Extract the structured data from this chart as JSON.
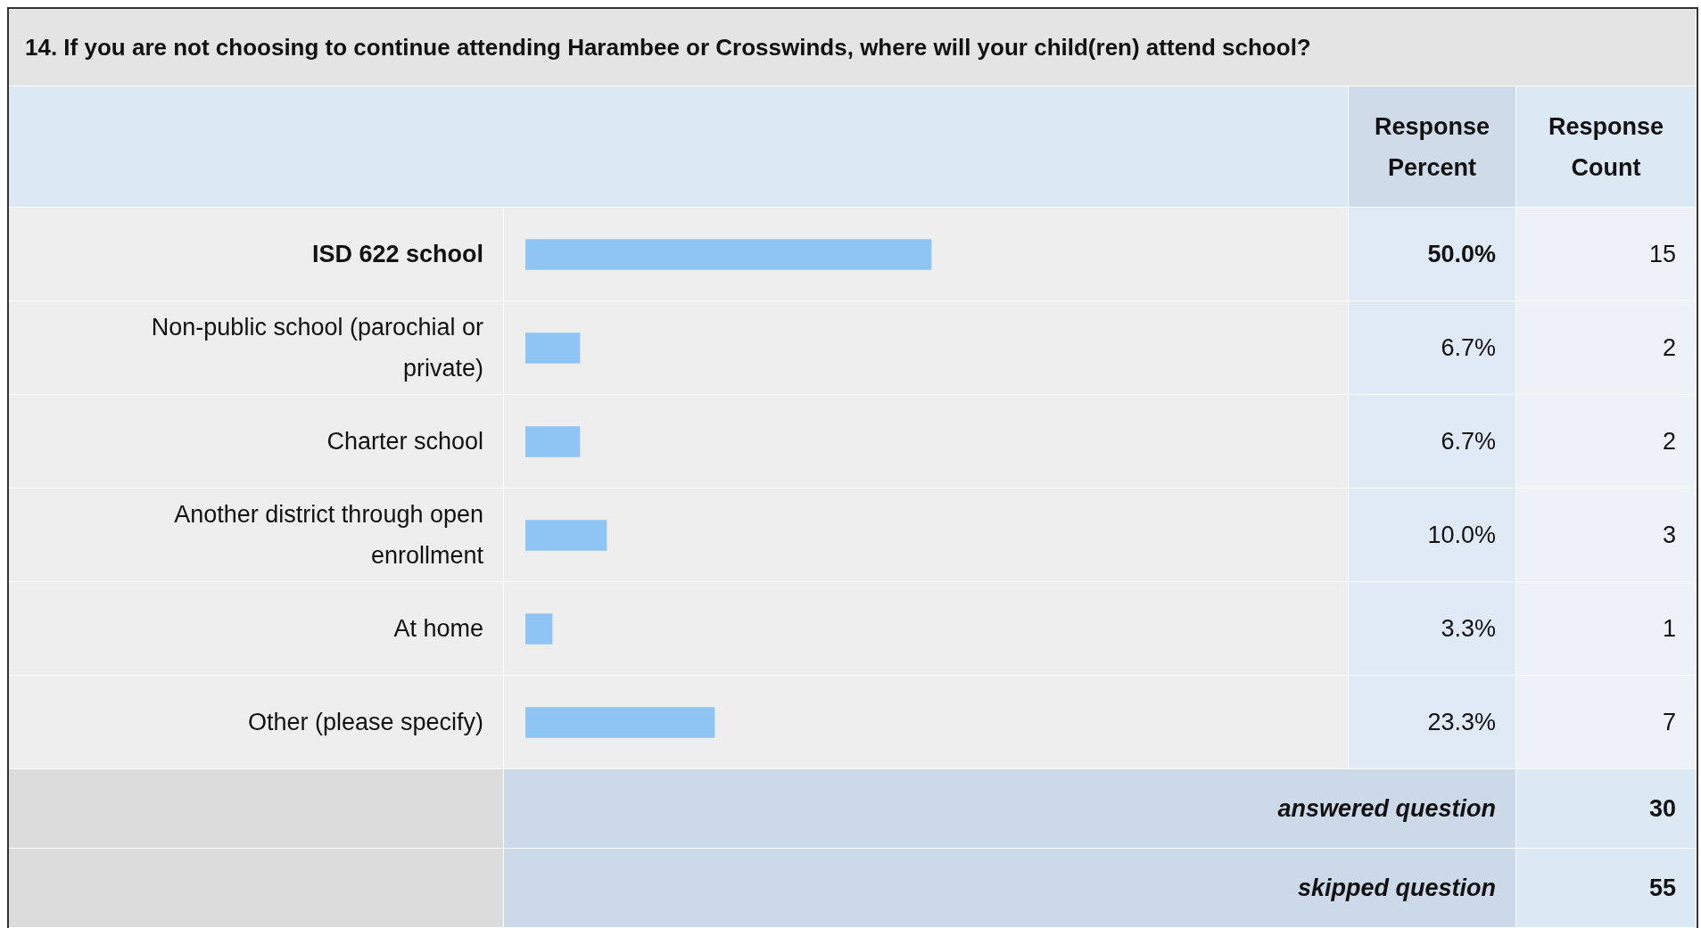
{
  "chart_data": {
    "type": "bar",
    "orientation": "horizontal",
    "title": "14. If you are not choosing to continue attending Harambee or Crosswinds, where will your child(ren) attend school?",
    "categories": [
      "ISD 622 school",
      "Non-public school (parochial or private)",
      "Charter school",
      "Another district through open enrollment",
      "At home",
      "Other (please specify)"
    ],
    "values": [
      50.0,
      6.7,
      6.7,
      10.0,
      3.3,
      23.3
    ],
    "value_labels": [
      "50.0%",
      "6.7%",
      "6.7%",
      "10.0%",
      "3.3%",
      "23.3%"
    ],
    "color": "#8ec5f5",
    "annotations": [
      "Response Percent",
      "Response Count",
      "15",
      "2",
      "2",
      "3",
      "1",
      "7",
      "answered question",
      "30",
      "skipped question",
      "55"
    ]
  }
}
